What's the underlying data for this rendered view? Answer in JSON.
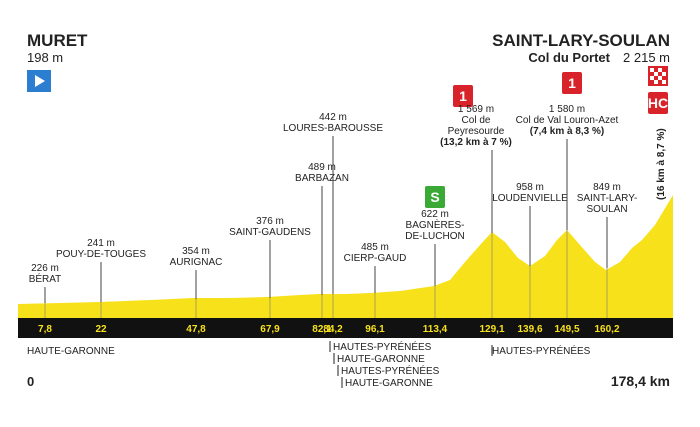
{
  "header": {
    "start": {
      "name": "MURET",
      "altitude": "198 m"
    },
    "finish": {
      "name": "SAINT-LARY-SOULAN",
      "summit": "Col du Portet",
      "altitude": "2 215 m"
    }
  },
  "badges": {
    "climb1": "1",
    "climb2": "1",
    "sprint": "S",
    "final": "HC"
  },
  "final_climb_note": "(16 km à 8,7 %)",
  "waypoints": [
    {
      "altitude": "226 m",
      "name": [
        "BÉRAT"
      ],
      "km": "7,8"
    },
    {
      "altitude": "241 m",
      "name": [
        "POUY-DE-TOUGES"
      ],
      "km": "22"
    },
    {
      "altitude": "354 m",
      "name": [
        "AURIGNAC"
      ],
      "km": "47,8"
    },
    {
      "altitude": "376 m",
      "name": [
        "SAINT-GAUDENS"
      ],
      "km": "67,9"
    },
    {
      "altitude": "489 m",
      "name": [
        "BARBAZAN"
      ],
      "km": "82,1"
    },
    {
      "altitude": "442 m",
      "name": [
        "LOURES-BAROUSSE"
      ],
      "km": "84,2"
    },
    {
      "altitude": "485 m",
      "name": [
        "CIERP-GAUD"
      ],
      "km": "96,1"
    },
    {
      "altitude": "622 m",
      "name": [
        "BAGNÈRES-",
        "DE-LUCHON"
      ],
      "km": "113,4"
    },
    {
      "altitude": "1 569 m",
      "name": [
        "Col de",
        "Peyresourde"
      ],
      "note": "(13,2 km à 7 %)",
      "km": "129,1"
    },
    {
      "altitude": "958 m",
      "name": [
        "LOUDENVIELLE"
      ],
      "km": "139,6"
    },
    {
      "altitude": "1 580 m",
      "name": [
        "Col de Val Louron-Azet"
      ],
      "note": "(7,4 km à 8,3 %)",
      "km": "149,5"
    },
    {
      "altitude": "849 m",
      "name": [
        "SAINT-LARY-",
        "SOULAN"
      ],
      "km": "160,2"
    }
  ],
  "regions": {
    "start": "HAUTE-GARONNE",
    "border": [
      "HAUTES-PYRÉNÉES",
      "HAUTE-GARONNE",
      "HAUTES-PYRÉNÉES",
      "HAUTE-GARONNE"
    ],
    "end": "HAUTES-PYRÉNÉES"
  },
  "distance": {
    "start": "0",
    "finish": "178,4 km"
  }
}
